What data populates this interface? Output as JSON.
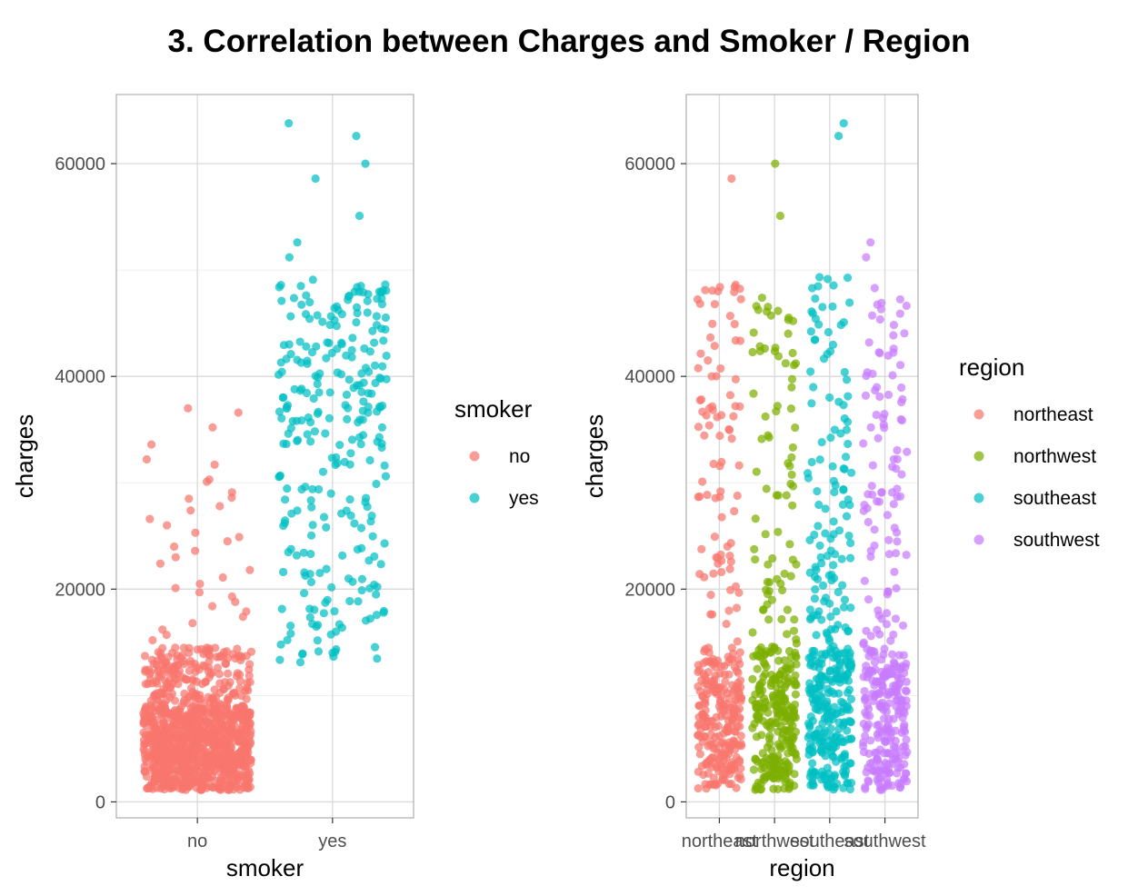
{
  "page": {
    "title": "3. Correlation between Charges and Smoker / Region"
  },
  "chart_data": [
    {
      "type": "scatter",
      "jitter": true,
      "xlabel": "smoker",
      "ylabel": "charges",
      "categories": [
        "no",
        "yes"
      ],
      "yticks": [
        0,
        20000,
        40000,
        60000
      ],
      "ylim": [
        -1500,
        66500
      ],
      "grid": true,
      "legend": {
        "title": "smoker",
        "position": "right",
        "entries": [
          {
            "label": "no",
            "color": "#F8766D"
          },
          {
            "label": "yes",
            "color": "#00BFC4"
          }
        ]
      },
      "series": [
        {
          "color": "#F8766D",
          "summary": {
            "count": 1064,
            "dense_range": [
              1100,
              14500
            ],
            "sparse_range": [
              15000,
              37000
            ]
          },
          "outliers": [
            37000,
            36600,
            35200,
            33600,
            32200,
            31700,
            30300,
            30100,
            29100,
            28600,
            28500,
            27800,
            27400,
            26600,
            26000,
            25300,
            24900,
            24500,
            24000,
            23600,
            23000,
            22400,
            21800,
            21100,
            20500,
            20100,
            19700,
            19300,
            18800,
            18400,
            17900,
            17400,
            16800,
            16200,
            15700,
            15200
          ]
        },
        {
          "color": "#00BFC4",
          "summary": {
            "count": 274,
            "dense_range": [
              13000,
              49500
            ]
          },
          "outliers": [
            63800,
            62600,
            60000,
            58600,
            55100,
            52600,
            51200
          ]
        }
      ]
    },
    {
      "type": "scatter",
      "jitter": true,
      "xlabel": "region",
      "ylabel": "charges",
      "categories": [
        "northeast",
        "northwest",
        "southeast",
        "southwest"
      ],
      "yticks": [
        0,
        20000,
        40000,
        60000
      ],
      "ylim": [
        -1500,
        66500
      ],
      "grid": true,
      "legend": {
        "title": "region",
        "position": "right",
        "entries": [
          {
            "label": "northeast",
            "color": "#F8766D"
          },
          {
            "label": "northwest",
            "color": "#7CAE00"
          },
          {
            "label": "southeast",
            "color": "#00BFC4"
          },
          {
            "label": "southwest",
            "color": "#C77CFF"
          }
        ]
      },
      "series": [
        {
          "color": "#F8766D",
          "summary": {
            "count": 324,
            "max_regular": 48500
          },
          "outliers": [
            58600,
            48600,
            48400
          ]
        },
        {
          "color": "#7CAE00",
          "summary": {
            "count": 325,
            "max_regular": 47500
          },
          "outliers": [
            60000,
            55100
          ]
        },
        {
          "color": "#00BFC4",
          "summary": {
            "count": 364,
            "max_regular": 49500
          },
          "outliers": [
            63800,
            62600
          ]
        },
        {
          "color": "#C77CFF",
          "summary": {
            "count": 325,
            "max_regular": 48500
          },
          "outliers": [
            52600,
            51200
          ]
        }
      ]
    }
  ]
}
